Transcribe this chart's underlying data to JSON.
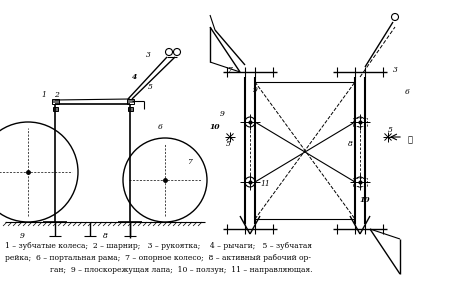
{
  "caption_line1": "1 – зубчатые колеса;  2 – шарнир;   3 – рукоятка;    4 – рычаги;   5 – зубчатая",
  "caption_line2": "рейка;  6 – портальная рама;  7 – опорное колесо;  8 – активный рабочий ор-",
  "caption_line3": "ган;  9 – плоскорежущая лапа;  10 – ползун;  11 – направляющая.",
  "bg_color": "#ffffff",
  "fig_width": 4.57,
  "fig_height": 2.92,
  "dpi": 100
}
